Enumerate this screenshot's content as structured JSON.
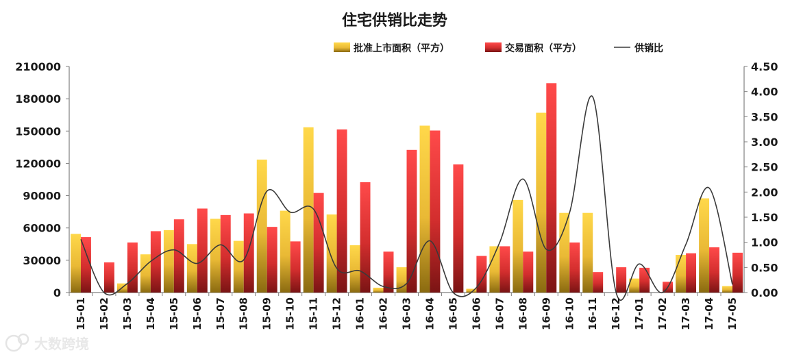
{
  "chart_data": {
    "type": "bar",
    "title": "住宅供销比走势",
    "categories": [
      "15-01",
      "15-02",
      "15-03",
      "15-04",
      "15-05",
      "15-06",
      "15-07",
      "15-08",
      "15-09",
      "15-10",
      "15-11",
      "15-12",
      "16-01",
      "16-02",
      "16-03",
      "16-04",
      "16-05",
      "16-06",
      "16-07",
      "16-08",
      "16-09",
      "16-10",
      "16-11",
      "16-12",
      "17-01",
      "17-02",
      "17-03",
      "17-04",
      "17-05"
    ],
    "series": [
      {
        "name": "批准上市面积（平方）",
        "type": "bar",
        "axis": "left",
        "color": "#f2c53d",
        "values": [
          54500,
          0,
          8500,
          35500,
          58000,
          45000,
          68500,
          48000,
          123500,
          76000,
          153500,
          72500,
          44000,
          4500,
          23500,
          155000,
          0,
          3500,
          43000,
          86000,
          167000,
          74000,
          74000,
          0,
          13000,
          0,
          35000,
          87500,
          6000
        ]
      },
      {
        "name": "交易面积（平方）",
        "type": "bar",
        "axis": "left",
        "color": "#d83a3a",
        "values": [
          51500,
          28000,
          46500,
          57000,
          68000,
          78000,
          72000,
          73500,
          61000,
          47500,
          92500,
          151500,
          102500,
          38000,
          132500,
          150500,
          119000,
          34000,
          43000,
          38000,
          194500,
          46500,
          19000,
          23500,
          23000,
          10000,
          36500,
          42000,
          37000
        ]
      },
      {
        "name": "供销比",
        "type": "line",
        "axis": "right",
        "color": "#3a3a3a",
        "values": [
          1.06,
          0,
          0.18,
          0.62,
          0.85,
          0.58,
          0.95,
          0.65,
          2.02,
          1.6,
          1.66,
          0.48,
          0.43,
          0.12,
          0.18,
          1.03,
          0,
          0.1,
          1.0,
          2.26,
          0.86,
          1.59,
          3.89,
          0,
          0.57,
          0,
          0.96,
          2.08,
          0.16
        ]
      }
    ],
    "y_left": {
      "min": 0,
      "max": 210000,
      "ticks": [
        0,
        30000,
        60000,
        90000,
        120000,
        150000,
        180000,
        210000
      ]
    },
    "y_right": {
      "min": 0,
      "max": 4.5,
      "ticks": [
        "0.00",
        "0.50",
        "1.00",
        "1.50",
        "2.00",
        "2.50",
        "3.00",
        "3.50",
        "4.00",
        "4.50"
      ]
    },
    "legend": "top",
    "grid": false
  },
  "watermark": {
    "text": "大数跨境",
    "icon": "logo-icon"
  }
}
